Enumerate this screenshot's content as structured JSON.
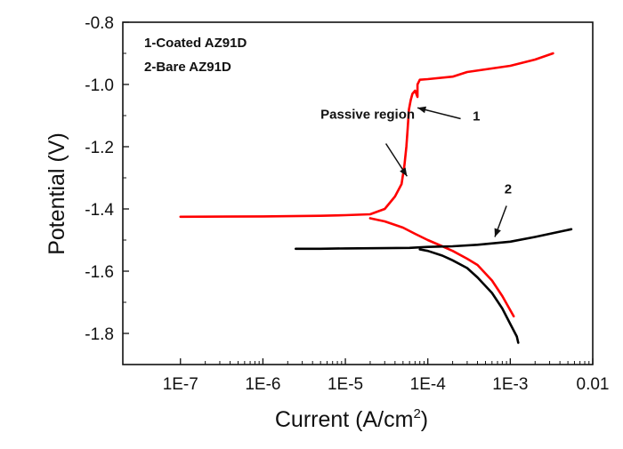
{
  "chart_data": {
    "type": "line",
    "title": "",
    "xlabel": "Current (A/cm",
    "xlabel_sup": "2",
    "xlabel_close": ")",
    "ylabel": "Potential (V)",
    "xscale": "log",
    "xlim": [
      2e-08,
      0.01
    ],
    "ylim": [
      -1.9,
      -0.8
    ],
    "x_ticks": [
      {
        "value": 1e-07,
        "label": "1E-7"
      },
      {
        "value": 1e-06,
        "label": "1E-6"
      },
      {
        "value": 1e-05,
        "label": "1E-5"
      },
      {
        "value": 0.0001,
        "label": "1E-4"
      },
      {
        "value": 0.001,
        "label": "1E-3"
      },
      {
        "value": 0.01,
        "label": "0.01"
      }
    ],
    "y_ticks": [
      {
        "value": -0.8,
        "label": "-0.8"
      },
      {
        "value": -1.0,
        "label": "-1.0"
      },
      {
        "value": -1.2,
        "label": "-1.2"
      },
      {
        "value": -1.4,
        "label": "-1.4"
      },
      {
        "value": -1.6,
        "label": "-1.6"
      },
      {
        "value": -1.8,
        "label": "-1.8"
      }
    ],
    "legend": [
      "1-Coated AZ91D",
      "2-Bare AZ91D"
    ],
    "legend_position": "top-left",
    "series": [
      {
        "name": "Coated AZ91D",
        "color": "#ff0000",
        "anodic": [
          [
            1e-07,
            -1.425
          ],
          [
            1e-06,
            -1.424
          ],
          [
            5e-06,
            -1.422
          ],
          [
            1e-05,
            -1.42
          ],
          [
            2e-05,
            -1.417
          ],
          [
            3e-05,
            -1.4
          ],
          [
            4e-05,
            -1.36
          ],
          [
            4.8e-05,
            -1.32
          ],
          [
            5.2e-05,
            -1.26
          ],
          [
            5.5e-05,
            -1.2
          ],
          [
            5.7e-05,
            -1.14
          ],
          [
            5.9e-05,
            -1.08
          ],
          [
            6.2e-05,
            -1.05
          ],
          [
            6.5e-05,
            -1.03
          ],
          [
            7e-05,
            -1.02
          ],
          [
            7.5e-05,
            -1.04
          ],
          [
            7.5e-05,
            -1.0
          ],
          [
            8e-05,
            -0.985
          ],
          [
            0.0001,
            -0.983
          ],
          [
            0.0002,
            -0.975
          ],
          [
            0.0003,
            -0.96
          ],
          [
            0.001,
            -0.94
          ],
          [
            0.002,
            -0.92
          ],
          [
            0.0033,
            -0.9
          ]
        ],
        "cathodic": [
          [
            2e-05,
            -1.43
          ],
          [
            3e-05,
            -1.44
          ],
          [
            5e-05,
            -1.46
          ],
          [
            7e-05,
            -1.48
          ],
          [
            0.0001,
            -1.5
          ],
          [
            0.00015,
            -1.52
          ],
          [
            0.0002,
            -1.535
          ],
          [
            0.0003,
            -1.56
          ],
          [
            0.0004,
            -1.58
          ],
          [
            0.0006,
            -1.63
          ],
          [
            0.0008,
            -1.68
          ],
          [
            0.0011,
            -1.745
          ]
        ]
      },
      {
        "name": "Bare AZ91D",
        "color": "#000000",
        "anodic": [
          [
            2.5e-06,
            -1.528
          ],
          [
            5e-06,
            -1.528
          ],
          [
            1e-05,
            -1.527
          ],
          [
            3e-05,
            -1.526
          ],
          [
            6e-05,
            -1.525
          ],
          [
            0.0001,
            -1.522
          ],
          [
            0.0002,
            -1.52
          ],
          [
            0.0004,
            -1.515
          ],
          [
            0.001,
            -1.505
          ],
          [
            0.002,
            -1.49
          ],
          [
            0.003,
            -1.48
          ],
          [
            0.0055,
            -1.465
          ]
        ],
        "cathodic": [
          [
            8e-05,
            -1.53
          ],
          [
            0.0001,
            -1.535
          ],
          [
            0.00015,
            -1.55
          ],
          [
            0.0002,
            -1.565
          ],
          [
            0.0003,
            -1.59
          ],
          [
            0.0004,
            -1.62
          ],
          [
            0.0006,
            -1.67
          ],
          [
            0.0008,
            -1.72
          ],
          [
            0.001,
            -1.77
          ],
          [
            0.0012,
            -1.81
          ],
          [
            0.00125,
            -1.83
          ]
        ]
      }
    ],
    "annotations": [
      {
        "text": "Passive region",
        "text_at": [
          5e-06,
          -1.11
        ],
        "arrow_from": [
          3.1e-05,
          -1.19
        ],
        "arrow_to": [
          5.6e-05,
          -1.295
        ]
      },
      {
        "text": "1",
        "text_at": [
          0.00035,
          -1.115
        ],
        "arrow_from": [
          0.00025,
          -1.11
        ],
        "arrow_to": [
          7.5e-05,
          -1.075
        ]
      },
      {
        "text": "2",
        "text_at": [
          0.00085,
          -1.35
        ],
        "arrow_from": [
          0.0009,
          -1.39
        ],
        "arrow_to": [
          0.00065,
          -1.49
        ]
      }
    ]
  }
}
